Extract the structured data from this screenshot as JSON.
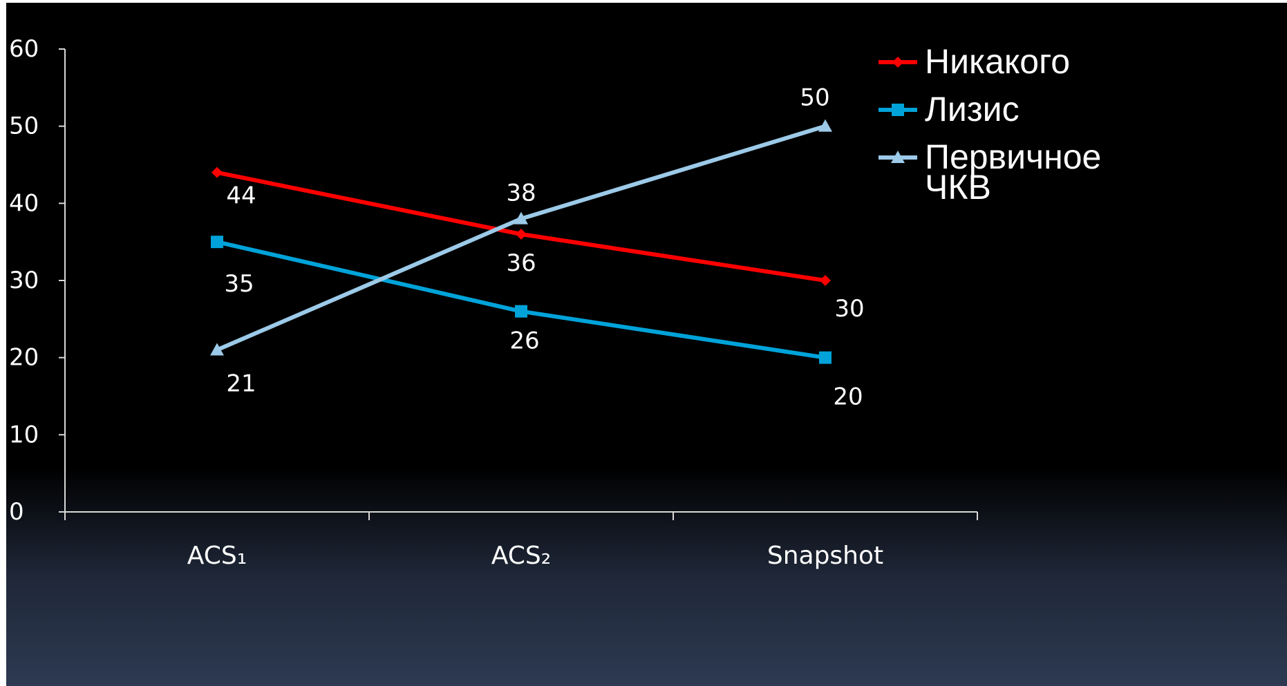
{
  "chart_data": {
    "type": "line",
    "categories": [
      "ACS₁",
      "ACS₂",
      "Snapshot"
    ],
    "series": [
      {
        "name": "Никакого",
        "values": [
          44,
          36,
          30
        ],
        "color": "#ff0000",
        "marker": "diamond",
        "labels": [
          "44",
          "36",
          "30"
        ]
      },
      {
        "name": "Лизис",
        "values": [
          35,
          26,
          20
        ],
        "color": "#00a3d9",
        "marker": "square",
        "labels": [
          "35",
          "26",
          "20"
        ]
      },
      {
        "name": "Первичное ЧКВ",
        "values": [
          21,
          38,
          50
        ],
        "color": "#9ccae8",
        "marker": "triangle",
        "labels": [
          "21",
          "38",
          "50"
        ]
      }
    ],
    "ylim": [
      0,
      60
    ],
    "yticks": [
      "0",
      "10",
      "20",
      "30",
      "40",
      "50",
      "60"
    ],
    "legend_position": "right",
    "grid": false,
    "background": "#000000",
    "text_color": "#ffffff"
  }
}
